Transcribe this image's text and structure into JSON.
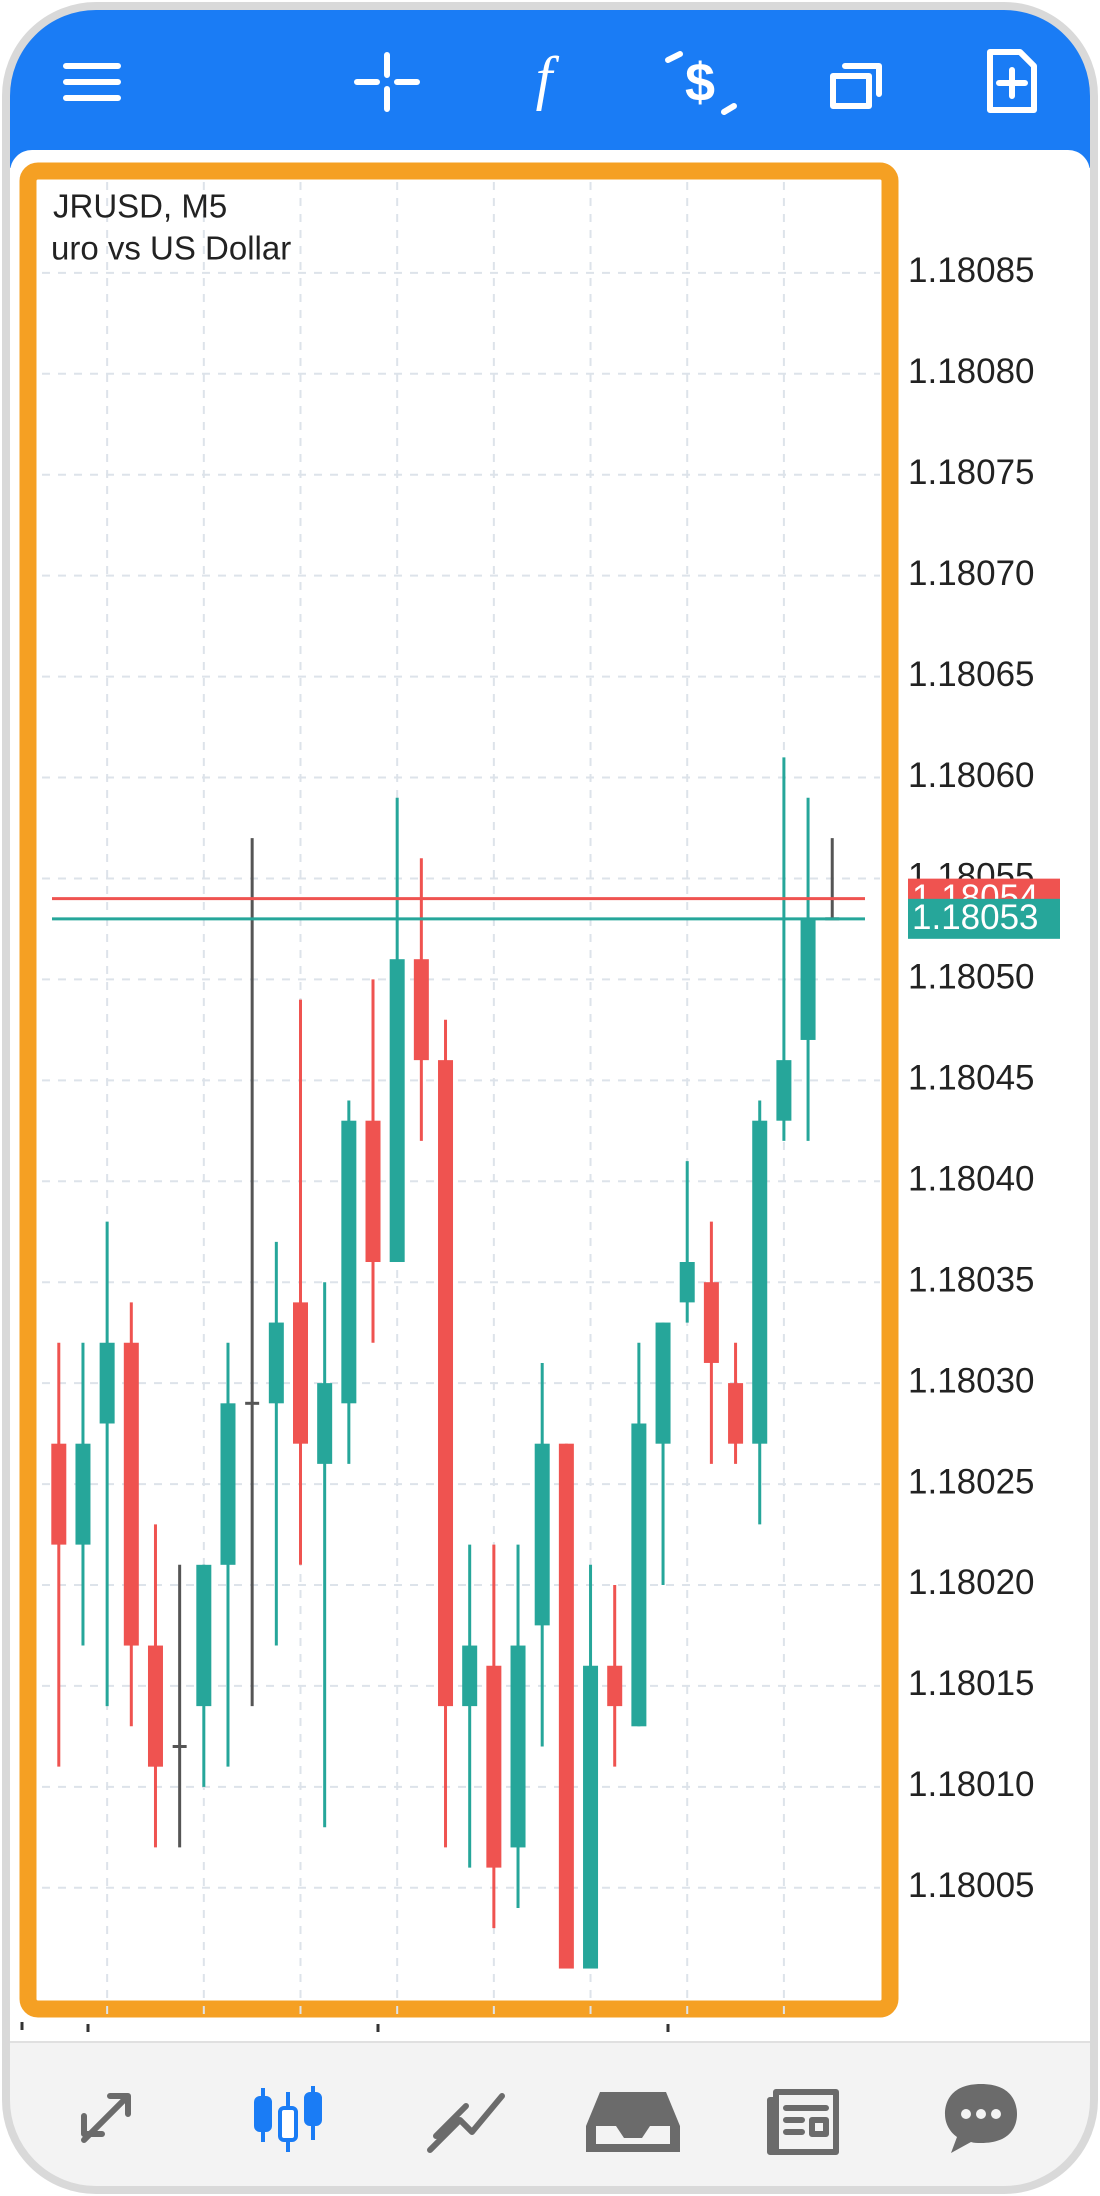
{
  "chart_data": {
    "type": "candlestick",
    "title": "JRUSD, M5",
    "subtitle": "uro vs US Dollar",
    "open": [
      1.18027,
      1.18022,
      1.18028,
      1.18032,
      1.18017,
      1.18012,
      1.18014,
      1.18021,
      1.18029,
      1.18029,
      1.18034,
      1.18026,
      1.18029,
      1.18043,
      1.18036,
      1.18051,
      1.18046,
      1.18014,
      1.18016,
      1.18007,
      1.18018,
      1.18027,
      1.18001,
      1.18016,
      1.18013,
      1.18027,
      1.18034,
      1.18035,
      1.1803,
      1.18027,
      1.18043,
      1.18047,
      1.18053
    ],
    "high": [
      1.18032,
      1.18032,
      1.18038,
      1.18034,
      1.18023,
      1.18021,
      1.18021,
      1.18032,
      1.18057,
      1.18037,
      1.18049,
      1.18035,
      1.18044,
      1.1805,
      1.18059,
      1.18056,
      1.18048,
      1.18022,
      1.18022,
      1.18022,
      1.18031,
      1.18027,
      1.18021,
      1.1802,
      1.18032,
      1.18033,
      1.18041,
      1.18038,
      1.18032,
      1.18044,
      1.18061,
      1.18059,
      1.18057
    ],
    "low": [
      1.18011,
      1.18017,
      1.18014,
      1.18013,
      1.18007,
      1.18007,
      1.1801,
      1.18011,
      1.18014,
      1.18017,
      1.18021,
      1.18008,
      1.18026,
      1.18032,
      1.18036,
      1.18042,
      1.18007,
      1.18006,
      1.18003,
      1.18004,
      1.18012,
      1.18001,
      1.18001,
      1.18011,
      1.18013,
      1.1802,
      1.18033,
      1.18026,
      1.18026,
      1.18023,
      1.18042,
      1.18042,
      1.18053
    ],
    "close": [
      1.18022,
      1.18027,
      1.18032,
      1.18017,
      1.18011,
      1.18012,
      1.18021,
      1.18029,
      1.18029,
      1.18033,
      1.18027,
      1.1803,
      1.18043,
      1.18036,
      1.18051,
      1.18046,
      1.18014,
      1.18017,
      1.18006,
      1.18017,
      1.18027,
      1.18001,
      1.18016,
      1.18014,
      1.18028,
      1.18033,
      1.18036,
      1.18031,
      1.18027,
      1.18043,
      1.18046,
      1.18053,
      1.18053
    ],
    "up_color": "#26a69a",
    "down_color": "#ef5350",
    "doji_color": "#555555",
    "ask": 1.18054,
    "ask_color": "#ef5350",
    "bid": 1.18053,
    "bid_color": "#26a69a",
    "ylim": [
      1.179986,
      1.180895
    ],
    "yticks": [
      1.18005,
      {
        "value": 1.1801,
        "label": "1.18010"
      },
      1.18015,
      {
        "value": 1.1802,
        "label": "1.18020"
      },
      1.18025,
      {
        "value": 1.1803,
        "label": "1.18030"
      },
      1.18035,
      {
        "value": 1.1804,
        "label": "1.18040"
      },
      1.18045,
      {
        "value": 1.1805,
        "label": "1.18050"
      },
      1.18055,
      {
        "value": 1.1806,
        "label": "1.18060"
      },
      1.18065,
      {
        "value": 1.1807,
        "label": "1.18070"
      },
      1.18075,
      {
        "value": 1.1808,
        "label": "1.18080"
      },
      1.18085
    ],
    "grid": true
  }
}
